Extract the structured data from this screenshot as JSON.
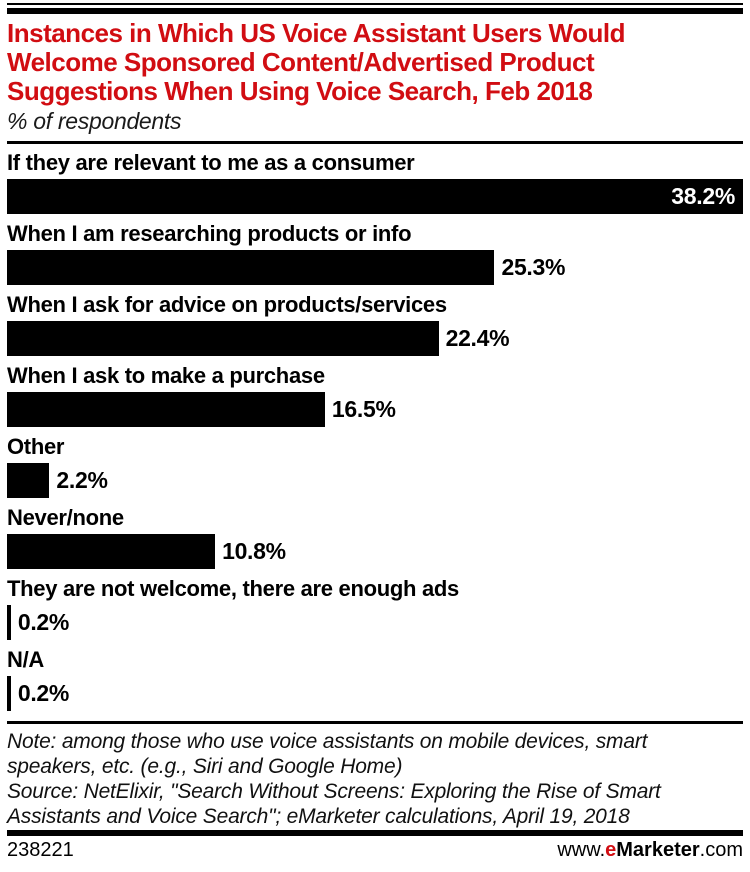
{
  "header": {
    "title": "Instances in Which US Voice Assistant Users Would Welcome Sponsored Content/Advertised Product Suggestions When Using Voice Search, Feb 2018",
    "title_lines": [
      "Instances in Which US Voice Assistant Users Would",
      "Welcome Sponsored Content/Advertised Product",
      "Suggestions When Using Voice Search, Feb 2018"
    ],
    "subtitle": "% of respondents"
  },
  "chart_data": {
    "type": "bar",
    "orientation": "horizontal",
    "title": "Instances in Which US Voice Assistant Users Would Welcome Sponsored Content/Advertised Product Suggestions When Using Voice Search, Feb 2018",
    "subtitle": "% of respondents",
    "unit": "% of respondents",
    "categories": [
      "If they are relevant to me as a consumer",
      "When I am researching products or info",
      "When I ask for advice on products/services",
      "When I ask to make a purchase",
      "Other",
      "Never/none",
      "They are not welcome, there are enough ads",
      "N/A"
    ],
    "values": [
      38.2,
      25.3,
      22.4,
      16.5,
      2.2,
      10.8,
      0.2,
      0.2
    ],
    "value_labels": [
      "38.2%",
      "25.3%",
      "22.4%",
      "16.5%",
      "2.2%",
      "10.8%",
      "0.2%",
      "0.2%"
    ],
    "xlim": [
      0,
      38.2
    ],
    "grid": false,
    "legend": false,
    "bar_color": "#000000"
  },
  "footer": {
    "note": "Note: among those who use voice assistants on mobile devices, smart speakers, etc. (e.g., Siri and Google Home)",
    "note_lines": [
      "Note: among those who use voice assistants on mobile devices, smart",
      "speakers, etc. (e.g., Siri and Google Home)"
    ],
    "source": "Source: NetElixir, \"Search Without Screens: Exploring the Rise of Smart Assistants and Voice Search\"; eMarketer calculations, April 19, 2018",
    "source_lines": [
      "Source: NetElixir, \"Search Without Screens: Exploring the Rise of Smart",
      "Assistants and Voice Search\"; eMarketer calculations, April 19, 2018"
    ],
    "chart_id": "238221",
    "website": {
      "prefix": "www.",
      "e_accent": "e",
      "brand": "Marketer",
      "suffix": ".com"
    }
  },
  "colors": {
    "accent_red": "#d10d12",
    "bar": "#000000",
    "background": "#ffffff"
  }
}
